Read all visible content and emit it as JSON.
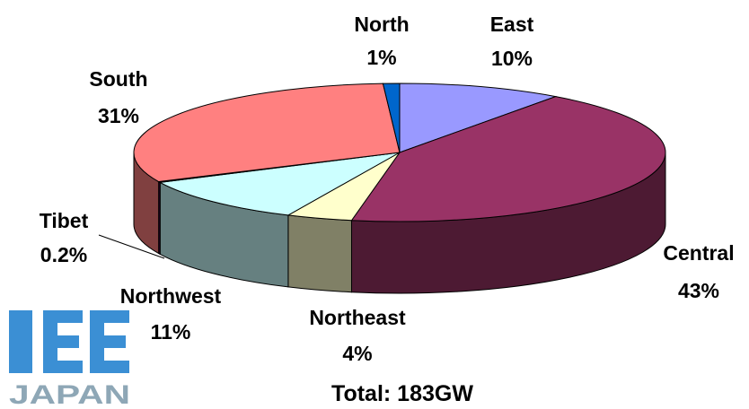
{
  "chart_data": {
    "type": "pie",
    "style": "3d",
    "series": [
      {
        "name": "East",
        "value": 10,
        "label": "10%",
        "color": "#9999ff",
        "side_color": "#5f5fa8"
      },
      {
        "name": "Central",
        "value": 43,
        "label": "43%",
        "color": "#993366",
        "side_color": "#4d1a33"
      },
      {
        "name": "Northeast",
        "value": 4,
        "label": "4%",
        "color": "#ffffcc",
        "side_color": "#808066"
      },
      {
        "name": "Northwest",
        "value": 11,
        "label": "11%",
        "color": "#ccffff",
        "side_color": "#668080"
      },
      {
        "name": "Tibet",
        "value": 0.2,
        "label": "0.2%",
        "color": "#660066",
        "side_color": "#330033"
      },
      {
        "name": "South",
        "value": 31,
        "label": "31%",
        "color": "#ff8080",
        "side_color": "#804040"
      },
      {
        "name": "North",
        "value": 1,
        "label": "1%",
        "color": "#0066cc",
        "side_color": "#003366"
      }
    ],
    "total_label": "Total: 183GW"
  },
  "logo": {
    "text": "IEE JAPAN",
    "color": "#3b8fd4"
  }
}
